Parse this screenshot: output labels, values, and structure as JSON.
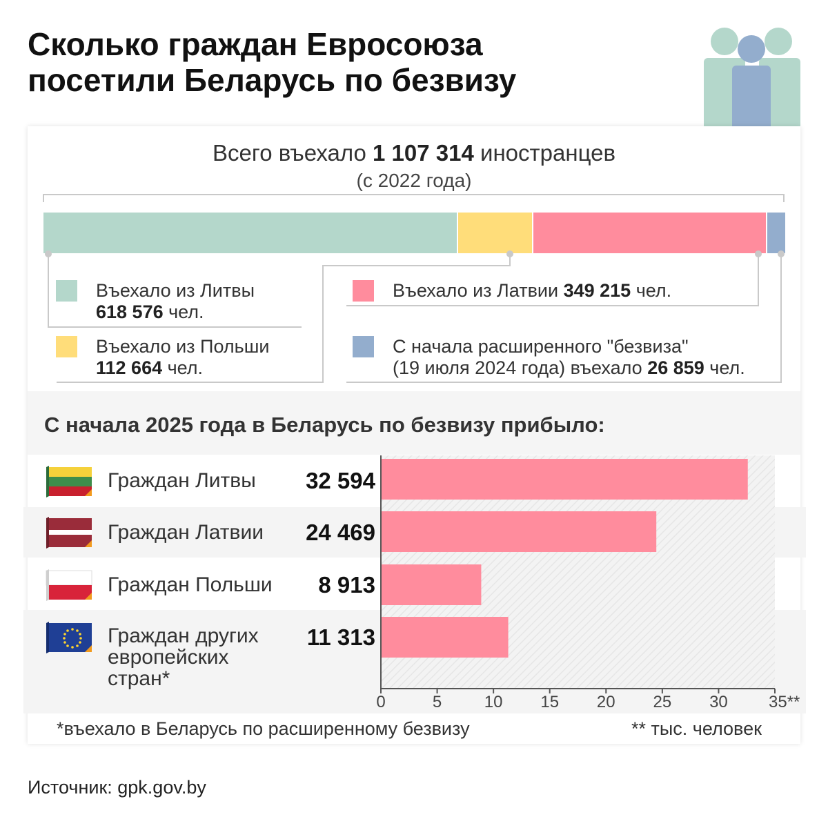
{
  "title": {
    "line1": "Сколько граждан Евросоюза",
    "line2": "посетили Беларусь по безвизу"
  },
  "icons": {
    "header_icon": "people-group-icon"
  },
  "total": {
    "prefix": "Всего въехало ",
    "value": "1 107 314",
    "suffix": " иностранцев",
    "subtitle": "(с 2022 года)"
  },
  "legend": {
    "lithuania": {
      "text": "Въехало из Литвы",
      "value": "618 576",
      "unit": " чел."
    },
    "poland": {
      "text": "Въехало из Польши",
      "value": "112 664",
      "unit": " чел."
    },
    "latvia": {
      "text": "Въехало из Латвии ",
      "value": "349 215",
      "unit": " чел."
    },
    "extended": {
      "text": "С начала расширенного \"безвиза\"",
      "text2": "(19 июля 2024 года) въехало ",
      "value": "26 859",
      "unit": " чел."
    }
  },
  "stacked_bar": {
    "segments": [
      {
        "name": "Литва",
        "value": 618576,
        "color": "#b4d7cb"
      },
      {
        "name": "Польша",
        "value": 112664,
        "color": "#ffdd7a"
      },
      {
        "name": "Латвия",
        "value": 349215,
        "color": "#ff8c9d"
      },
      {
        "name": "расширенный безвиз",
        "value": 26859,
        "color": "#93adcd"
      }
    ]
  },
  "section_title": "С начала 2025 года в Беларусь по безвизу прибыло:",
  "rows": [
    {
      "label": [
        "Граждан Литвы"
      ],
      "value": "32 594",
      "flag": "lithuania-flag-icon"
    },
    {
      "label": [
        "Граждан Латвии"
      ],
      "value": "24 469",
      "flag": "latvia-flag-icon"
    },
    {
      "label": [
        "Граждан Польши"
      ],
      "value": "8 913",
      "flag": "poland-flag-icon"
    },
    {
      "label": [
        "Граждан других",
        "европейских",
        "стран*"
      ],
      "value": "11 313",
      "flag": "eu-flag-icon"
    }
  ],
  "chart_data": {
    "type": "bar",
    "orientation": "horizontal",
    "categories": [
      "Граждан Литвы",
      "Граждан Латвии",
      "Граждан Польши",
      "Граждан других европейских стран*"
    ],
    "values": [
      32.594,
      24.469,
      8.913,
      11.313
    ],
    "xlim": [
      0,
      35
    ],
    "ticks": [
      "0",
      "5",
      "10",
      "15",
      "20",
      "25",
      "30",
      "35**"
    ],
    "bar_color": "#ff8c9d",
    "grid": false
  },
  "footnotes": {
    "left": "*въехало в Беларусь по расширенному безвизу",
    "right": "** тыс. человек"
  },
  "source": "Источник: gpk.gov.by"
}
